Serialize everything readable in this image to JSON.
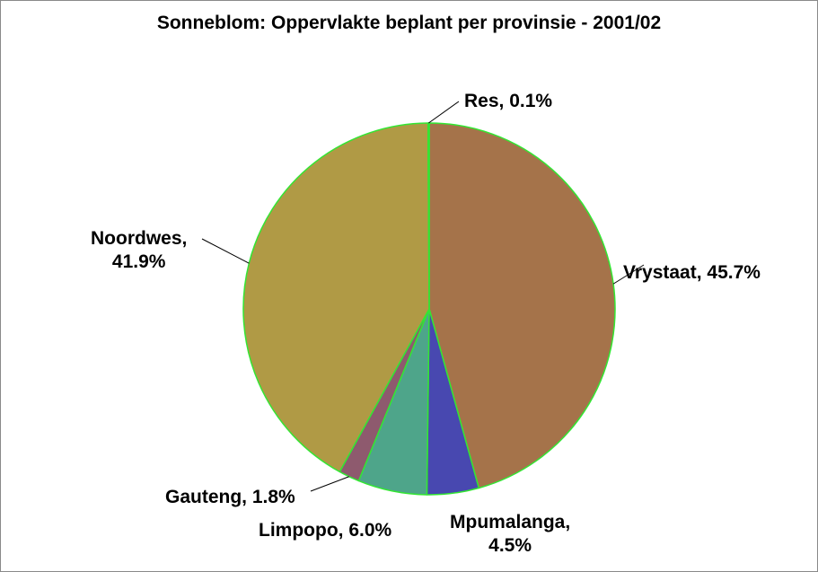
{
  "chart_data": {
    "type": "pie",
    "title": "Sonneblom: Oppervlakte beplant per provinsie - 2001/02",
    "slices": [
      {
        "name": "Vrystaat",
        "value": 45.7,
        "color": "#a5734a",
        "label": "Vrystaat, 45.7%"
      },
      {
        "name": "Mpumalanga",
        "value": 4.5,
        "color": "#4848b0",
        "label_line1": "Mpumalanga,",
        "label_line2": "4.5%"
      },
      {
        "name": "Limpopo",
        "value": 6.0,
        "color": "#4ea58a",
        "label": "Limpopo, 6.0%"
      },
      {
        "name": "Gauteng",
        "value": 1.8,
        "color": "#8e5a6e",
        "label": "Gauteng, 1.8%"
      },
      {
        "name": "Noordwes",
        "value": 41.9,
        "color": "#b09a45",
        "label_line1": "Noordwes,",
        "label_line2": "41.9%"
      },
      {
        "name": "Res",
        "value": 0.1,
        "color": "#8ab0c8",
        "label": "Res, 0.1%"
      }
    ],
    "start_angle": "top",
    "direction": "clockwise",
    "slice_border_color": "#33e633",
    "leader_line_color": "#000000"
  }
}
